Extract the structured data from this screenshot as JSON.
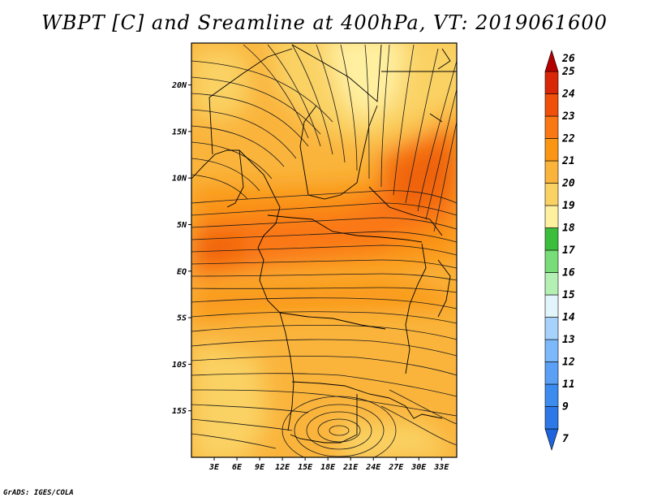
{
  "title": "WBPT [C] and Sreamline at 400hPa, VT: 2019061600",
  "credit": "GrADS: IGES/COLA",
  "map": {
    "lat_ticks": [
      "20N",
      "15N",
      "10N",
      "5N",
      "EQ",
      "5S",
      "10S",
      "15S"
    ],
    "lon_ticks": [
      "3E",
      "6E",
      "9E",
      "12E",
      "15E",
      "18E",
      "21E",
      "24E",
      "27E",
      "30E",
      "33E"
    ],
    "lon_range": [
      0,
      35
    ],
    "lat_range": [
      -20,
      24.5
    ]
  },
  "colorbar": {
    "labels": [
      "7",
      "9",
      "11",
      "12",
      "13",
      "14",
      "15",
      "16",
      "17",
      "18",
      "19",
      "20",
      "21",
      "22",
      "23",
      "24",
      "25",
      "26"
    ],
    "colors": [
      "#1e64dc",
      "#2d78e6",
      "#3c8cf0",
      "#5aa0f5",
      "#7db9fa",
      "#a6d2fc",
      "#e1f5fa",
      "#b4f0b4",
      "#78dc78",
      "#3cbe3c",
      "#fff0a0",
      "#fad264",
      "#fab43c",
      "#fa9614",
      "#fa7814",
      "#f0500a",
      "#d82808",
      "#b40000"
    ]
  }
}
